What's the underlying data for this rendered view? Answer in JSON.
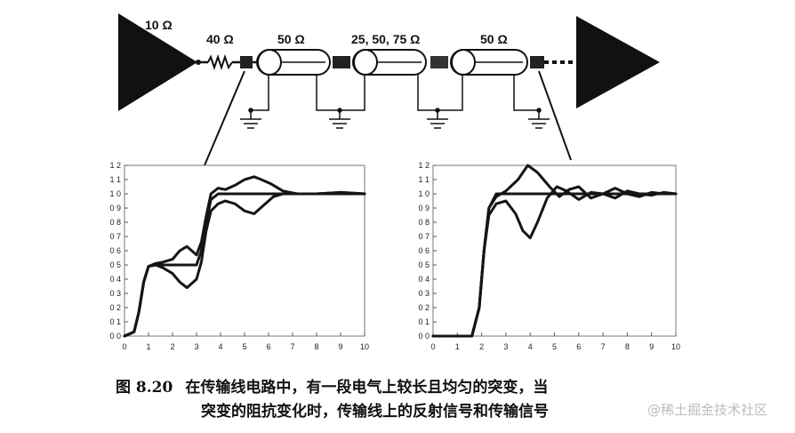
{
  "circuit": {
    "driver_label": "10 Ω",
    "resistor_label": "40 Ω",
    "segments": [
      {
        "label": "50 Ω"
      },
      {
        "label": "25, 50, 75 Ω"
      },
      {
        "label": "50 Ω"
      }
    ]
  },
  "chart_data": [
    {
      "type": "line",
      "title": "",
      "xlabel": "",
      "ylabel": "",
      "xlim": [
        0,
        10
      ],
      "ylim": [
        0,
        1.2
      ],
      "x_ticks": [
        "0",
        "1",
        "2",
        "3",
        "4",
        "5",
        "6",
        "7",
        "8",
        "9",
        "10"
      ],
      "y_ticks": [
        "0 0",
        "0 1",
        "0 2",
        "0 3",
        "0 4",
        "0 5",
        "0 6",
        "0 7",
        "0 8",
        "0 9",
        "1 0",
        "1 1",
        "1 2"
      ],
      "series": [
        {
          "x": [
            0,
            0.4,
            0.6,
            0.8,
            1.0,
            1.3,
            1.6,
            2.0,
            2.4,
            2.7,
            3.0,
            3.2,
            3.4,
            3.6,
            3.9,
            4.2,
            4.6,
            5.0,
            5.4,
            5.8,
            6.2,
            6.8,
            7.5,
            8.5,
            9.5,
            10
          ],
          "y": [
            0,
            0.03,
            0.17,
            0.38,
            0.49,
            0.51,
            0.5,
            0.5,
            0.5,
            0.5,
            0.5,
            0.6,
            0.8,
            0.96,
            1.0,
            1.0,
            1.0,
            1.0,
            1.0,
            1.0,
            1.0,
            1.0,
            1.0,
            1.0,
            1.0,
            1.0
          ]
        },
        {
          "x": [
            0,
            0.4,
            0.6,
            0.8,
            1.0,
            1.3,
            1.6,
            2.0,
            2.3,
            2.6,
            3.0,
            3.2,
            3.4,
            3.6,
            3.9,
            4.2,
            4.6,
            5.0,
            5.4,
            5.7,
            6.1,
            6.6,
            7.2,
            8.0,
            9.0,
            10
          ],
          "y": [
            0,
            0.03,
            0.17,
            0.38,
            0.49,
            0.51,
            0.52,
            0.54,
            0.6,
            0.63,
            0.57,
            0.66,
            0.84,
            1.0,
            1.04,
            1.03,
            1.06,
            1.1,
            1.12,
            1.1,
            1.07,
            1.02,
            1.0,
            1.0,
            1.01,
            1.0
          ]
        },
        {
          "x": [
            0,
            0.4,
            0.6,
            0.8,
            1.0,
            1.3,
            1.6,
            2.0,
            2.3,
            2.6,
            3.0,
            3.2,
            3.4,
            3.6,
            3.9,
            4.2,
            4.6,
            5.0,
            5.4,
            5.8,
            6.2,
            6.6,
            7.2,
            8.0,
            9.0,
            10
          ],
          "y": [
            0,
            0.03,
            0.17,
            0.38,
            0.49,
            0.5,
            0.48,
            0.44,
            0.38,
            0.34,
            0.4,
            0.52,
            0.74,
            0.88,
            0.93,
            0.95,
            0.93,
            0.88,
            0.86,
            0.92,
            0.98,
            1.0,
            1.0,
            1.0,
            1.01,
            1.0
          ]
        }
      ]
    },
    {
      "type": "line",
      "title": "",
      "xlabel": "",
      "ylabel": "",
      "xlim": [
        0,
        10
      ],
      "ylim": [
        0,
        1.2
      ],
      "x_ticks": [
        "0",
        "1",
        "2",
        "3",
        "4",
        "5",
        "6",
        "7",
        "8",
        "9",
        "10"
      ],
      "y_ticks": [
        "0 0",
        "0 1",
        "0 2",
        "0 3",
        "0 4",
        "0 5",
        "0 6",
        "0 7",
        "0 8",
        "0 9",
        "1 0",
        "1 1",
        "1 2"
      ],
      "series": [
        {
          "x": [
            0,
            1.6,
            1.9,
            2.1,
            2.3,
            2.6,
            3.0,
            4.0,
            5.0,
            6.0,
            7.0,
            8.0,
            9.0,
            10
          ],
          "y": [
            0,
            0,
            0.2,
            0.6,
            0.9,
            1.0,
            1.0,
            1.0,
            1.0,
            1.0,
            1.0,
            1.0,
            1.0,
            1.0
          ]
        },
        {
          "x": [
            0,
            1.6,
            1.9,
            2.1,
            2.3,
            2.6,
            3.0,
            3.5,
            3.9,
            4.3,
            4.8,
            5.2,
            5.6,
            6.0,
            6.5,
            7.0,
            7.5,
            8.0,
            8.5,
            9.0,
            9.5,
            10
          ],
          "y": [
            0,
            0,
            0.2,
            0.6,
            0.9,
            0.98,
            1.02,
            1.1,
            1.2,
            1.15,
            1.05,
            0.98,
            1.03,
            1.05,
            0.97,
            1.0,
            1.04,
            1.0,
            0.98,
            1.01,
            1.0,
            1.0
          ]
        },
        {
          "x": [
            0,
            1.6,
            1.9,
            2.1,
            2.3,
            2.6,
            3.0,
            3.4,
            3.7,
            4.0,
            4.3,
            4.7,
            5.1,
            5.5,
            6.0,
            6.5,
            7.0,
            7.5,
            8.0,
            8.5,
            9.0,
            9.5,
            10
          ],
          "y": [
            0,
            0,
            0.2,
            0.6,
            0.85,
            0.93,
            0.95,
            0.86,
            0.74,
            0.69,
            0.8,
            0.97,
            1.05,
            1.02,
            0.96,
            1.01,
            1.0,
            0.97,
            1.02,
            1.0,
            0.99,
            1.01,
            1.0
          ]
        }
      ]
    }
  ],
  "caption": {
    "figure_number": "图 8.20",
    "line1": "在传输线电路中，有一段电气上较长且均匀的突变，当",
    "line2": "突变的阻抗变化时，传输线上的反射信号和传输信号"
  },
  "watermark": "@稀土掘金技术社区"
}
